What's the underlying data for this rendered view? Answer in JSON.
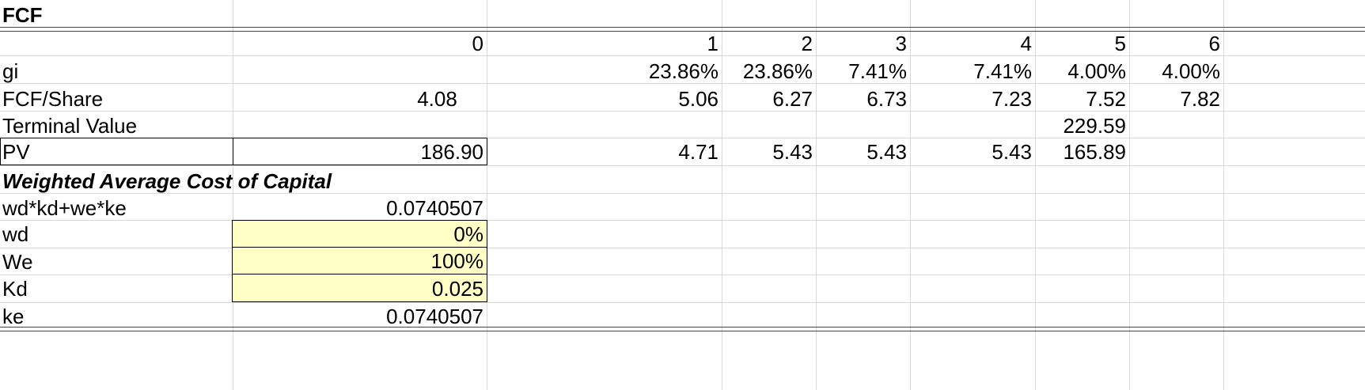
{
  "header": {
    "title": "FCF"
  },
  "periods": [
    "0",
    "1",
    "2",
    "3",
    "4",
    "5",
    "6"
  ],
  "rows": {
    "gi": {
      "label": "gi",
      "values": [
        "23.86%",
        "23.86%",
        "7.41%",
        "7.41%",
        "4.00%",
        "4.00%"
      ]
    },
    "fcf": {
      "label": "FCF/Share",
      "base": "4.08",
      "values": [
        "5.06",
        "6.27",
        "6.73",
        "7.23",
        "7.52",
        "7.82"
      ]
    },
    "terminal": {
      "label": "Terminal Value",
      "value": "229.59"
    },
    "pv": {
      "label": "PV",
      "total": "186.90",
      "values": [
        "4.71",
        "5.43",
        "5.43",
        "5.43",
        "165.89"
      ]
    }
  },
  "wacc": {
    "title": "Weighted Average Cost of Capital",
    "formula": {
      "label": "wd*kd+we*ke",
      "value": "0.0740507"
    },
    "wd": {
      "label": "wd",
      "value": "0%"
    },
    "we": {
      "label": "We",
      "value": "100%"
    },
    "kd": {
      "label": "Kd",
      "value": "0.025"
    },
    "ke": {
      "label": "ke",
      "value": "0.0740507"
    }
  },
  "colors": {
    "input_fill": "#ffffc6",
    "gridline": "#d9d9d9"
  }
}
